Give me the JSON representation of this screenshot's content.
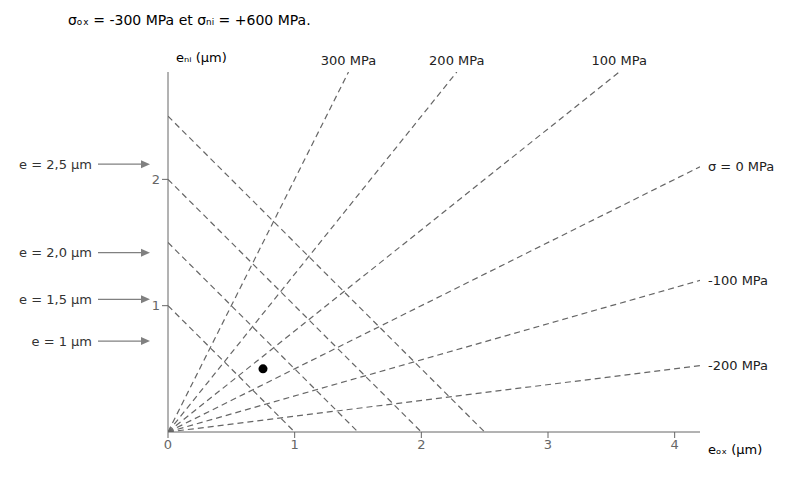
{
  "chart_data": {
    "type": "line",
    "title": "σₒₓ = -300 MPa et σₙᵢ = +600 MPa.",
    "x_label": "eₒₓ (μm)",
    "y_label": "eₙᵢ (μm)",
    "xlim": [
      0,
      4.2
    ],
    "ylim": [
      0,
      2.85
    ],
    "xticks": [
      0,
      1,
      2,
      3,
      4
    ],
    "yticks": [
      1,
      2
    ],
    "grid": false,
    "series": [
      {
        "name": "-200 MPa",
        "type": "line",
        "color": "#666666",
        "line_style": "dashed",
        "x": [
          0,
          4.2
        ],
        "values": [
          0,
          0.525
        ]
      },
      {
        "name": "-100 MPa",
        "type": "line",
        "color": "#666666",
        "line_style": "dashed",
        "x": [
          0,
          4.2
        ],
        "values": [
          0,
          1.2
        ]
      },
      {
        "name": "σ = 0 MPa",
        "type": "line",
        "color": "#666666",
        "line_style": "dashed",
        "x": [
          0,
          4.2
        ],
        "values": [
          0,
          2.1
        ]
      },
      {
        "name": "100 MPa",
        "type": "line",
        "color": "#666666",
        "line_style": "dashed",
        "x": [
          0,
          3.5625
        ],
        "values": [
          0,
          2.85
        ]
      },
      {
        "name": "200 MPa",
        "type": "line",
        "color": "#666666",
        "line_style": "dashed",
        "x": [
          0,
          2.28
        ],
        "values": [
          0,
          2.85
        ]
      },
      {
        "name": "300 MPa",
        "type": "line",
        "color": "#666666",
        "line_style": "dashed",
        "x": [
          0,
          1.425
        ],
        "values": [
          0,
          2.85
        ]
      },
      {
        "type": "line",
        "color": "#666666",
        "line_style": "dashed",
        "x": [
          0,
          1.0
        ],
        "values": [
          1.0,
          0
        ]
      },
      {
        "type": "line",
        "color": "#666666",
        "line_style": "dashed",
        "x": [
          0,
          1.5
        ],
        "values": [
          1.5,
          0
        ]
      },
      {
        "type": "line",
        "color": "#666666",
        "line_style": "dashed",
        "x": [
          0,
          2.0
        ],
        "values": [
          2.0,
          0
        ]
      },
      {
        "type": "line",
        "color": "#666666",
        "line_style": "dashed",
        "x": [
          0,
          2.5
        ],
        "values": [
          2.5,
          0
        ]
      },
      {
        "type": "scatter",
        "marker": "circle",
        "color": "#000000",
        "x": [
          0.75
        ],
        "values": [
          0.5
        ]
      }
    ],
    "annotations": [
      {
        "text": "e = 1 μm",
        "x": 0,
        "y": 0.72
      },
      {
        "text": "e = 1,5 μm",
        "x": 0,
        "y": 1.05
      },
      {
        "text": "e = 2,0 μm",
        "x": 0,
        "y": 1.42
      },
      {
        "text": "e = 2,5 μm",
        "x": 0,
        "y": 2.12
      }
    ]
  }
}
